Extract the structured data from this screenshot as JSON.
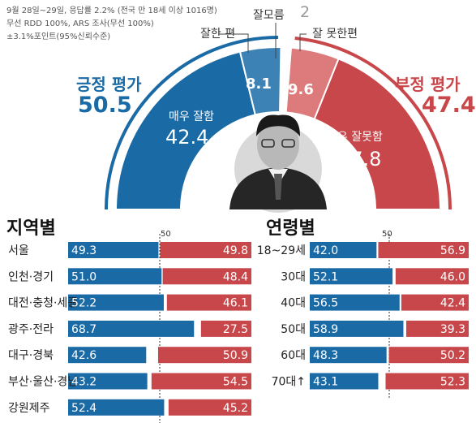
{
  "survey_note": {
    "line1": "9월 28일~29일, 응답률 2.2% (전국 만 18세 이상 1016명)",
    "line2": "무선 RDD 100%, ARS 조사(무선 100%)",
    "line3": "±3.1%포인트(95%신뢰수준)"
  },
  "colors": {
    "positive": "#1a6aa6",
    "positive_light": "#3d82b5",
    "negative": "#c8474a",
    "negative_light": "#dd7a7b",
    "dont_know": "#9a9a9a"
  },
  "chart_data": [
    {
      "type": "pie",
      "subtype": "semicircle",
      "positive": {
        "label": "긍정 평가",
        "total": 50.5,
        "segments": [
          {
            "name": "매우 잘함",
            "value": 42.4
          },
          {
            "name": "잘한 편",
            "value": 8.1
          }
        ]
      },
      "negative": {
        "label": "부정 평가",
        "total": 47.4,
        "segments": [
          {
            "name": "잘 못한편",
            "value": 9.6
          },
          {
            "name": "매우 잘못함",
            "value": 37.8
          }
        ]
      },
      "dont_know": {
        "name": "잘모름",
        "value": 2
      }
    },
    {
      "type": "bar",
      "title": "지역별",
      "reference_line": 50,
      "reference_label": "50",
      "categories": [
        "서울",
        "인천·경기",
        "대전·충청·세종",
        "광주·전라",
        "대구·경북",
        "부산·울산·경남",
        "강원제주"
      ],
      "series": [
        {
          "name": "긍정 평가",
          "values": [
            49.3,
            51.0,
            52.2,
            68.7,
            42.6,
            43.2,
            52.4
          ]
        },
        {
          "name": "부정 평가",
          "values": [
            49.8,
            48.4,
            46.1,
            27.5,
            50.9,
            54.5,
            45.2
          ]
        }
      ]
    },
    {
      "type": "bar",
      "title": "연령별",
      "reference_line": 50,
      "reference_label": "50",
      "categories": [
        "18~29세",
        "30대",
        "40대",
        "50대",
        "60대",
        "70대↑"
      ],
      "series": [
        {
          "name": "긍정 평가",
          "values": [
            42.0,
            52.1,
            56.5,
            58.9,
            48.3,
            43.1
          ]
        },
        {
          "name": "부정 평가",
          "values": [
            56.9,
            46.0,
            42.4,
            39.3,
            50.2,
            52.3
          ]
        }
      ]
    }
  ]
}
